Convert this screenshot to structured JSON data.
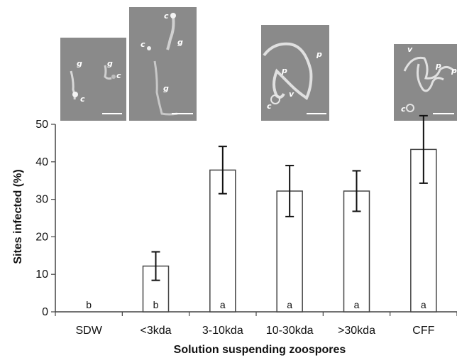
{
  "chart_data": {
    "type": "bar",
    "categories": [
      "SDW",
      "<3kda",
      "3-10kda",
      "10-30kda",
      ">30kda",
      "CFF"
    ],
    "values": [
      0,
      12.2,
      37.8,
      32.2,
      32.2,
      43.3
    ],
    "error": [
      0,
      3.8,
      6.3,
      6.8,
      5.4,
      9.0
    ],
    "significance": [
      "b",
      "b",
      "a",
      "a",
      "a",
      "a"
    ],
    "xlabel": "Solution suspending zoospores",
    "ylabel": "Sites infected (%)",
    "ylim": [
      0,
      50
    ],
    "yticks": [
      0,
      10,
      20,
      30,
      40,
      50
    ],
    "grid": false,
    "bar_fill": "#ffffff",
    "bar_edge": "#444444"
  },
  "micrographs": [
    {
      "category": "<3kda",
      "labels": [
        "g",
        "g",
        "c",
        "c"
      ]
    },
    {
      "category": "<3kda",
      "labels": [
        "c",
        "g",
        "c",
        "g"
      ]
    },
    {
      "category": "3-10kda",
      "labels": [
        "p",
        "p",
        "v",
        "c"
      ]
    },
    {
      "category": "CFF",
      "labels": [
        "v",
        "p",
        "p",
        "c"
      ]
    }
  ]
}
